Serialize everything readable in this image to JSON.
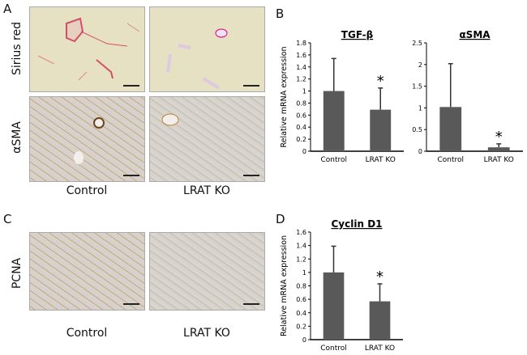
{
  "panels": {
    "a": "A",
    "b": "B",
    "c": "C",
    "d": "D"
  },
  "row_labels": {
    "sirius": "Sirius red",
    "asma": "αSMA",
    "pcna": "PCNA"
  },
  "col_labels": {
    "control": "Control",
    "ko": "LRAT KO"
  },
  "colors": {
    "bar": "#595959",
    "sirius_stain": "#d0506a",
    "dab_stain": "#b8823a"
  },
  "chart_data": [
    {
      "type": "bar",
      "title": "TGF-β",
      "ylabel": "Relative mRNA expression",
      "categories": [
        "Control",
        "LRAT KO"
      ],
      "values": [
        1.0,
        0.69
      ],
      "error_upper": [
        1.54,
        1.05
      ],
      "significance": [
        "",
        "*"
      ],
      "ylim": [
        0,
        1.8
      ],
      "yticks": [
        "0",
        "0.2",
        "0.4",
        "0.6",
        "0.8",
        "1",
        "1.2",
        "1.4",
        "1.6",
        "1.8"
      ],
      "grid": false
    },
    {
      "type": "bar",
      "title": "αSMA",
      "ylabel": "",
      "categories": [
        "Control",
        "LRAT KO"
      ],
      "values": [
        1.02,
        0.09
      ],
      "error_upper": [
        2.02,
        0.17
      ],
      "significance": [
        "",
        "*"
      ],
      "ylim": [
        0,
        2.5
      ],
      "yticks": [
        "0",
        "0.5",
        "1",
        "1.5",
        "2",
        "2.5"
      ],
      "grid": false
    },
    {
      "type": "bar",
      "title": "Cyclin D1",
      "ylabel": "Relative mRNA expression",
      "categories": [
        "Control",
        "LRAT KO"
      ],
      "values": [
        1.0,
        0.57
      ],
      "error_upper": [
        1.39,
        0.83
      ],
      "significance": [
        "",
        "*"
      ],
      "ylim": [
        0,
        1.6
      ],
      "yticks": [
        "0",
        "0.2",
        "0.4",
        "0.6",
        "0.8",
        "1",
        "1.2",
        "1.4",
        "1.6"
      ],
      "grid": false
    }
  ]
}
